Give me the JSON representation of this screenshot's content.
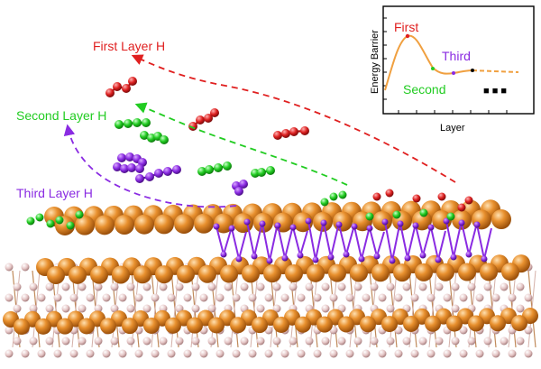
{
  "labels": {
    "first_layer": "First Layer H",
    "second_layer": "Second Layer H",
    "third_layer": "Third Layer H"
  },
  "inset": {
    "ylabel": "Energy Barrier",
    "xlabel": "Layer",
    "first": "First",
    "second": "Second",
    "third": "Third",
    "ellipsis": "■ ■ ■"
  },
  "colors": {
    "first_layer": "#e02020",
    "second_layer": "#22cc22",
    "third_layer": "#8a2be2",
    "metal": "#e08a2e",
    "substrate": "#e8c8c8",
    "curve": "#f0a040"
  }
}
